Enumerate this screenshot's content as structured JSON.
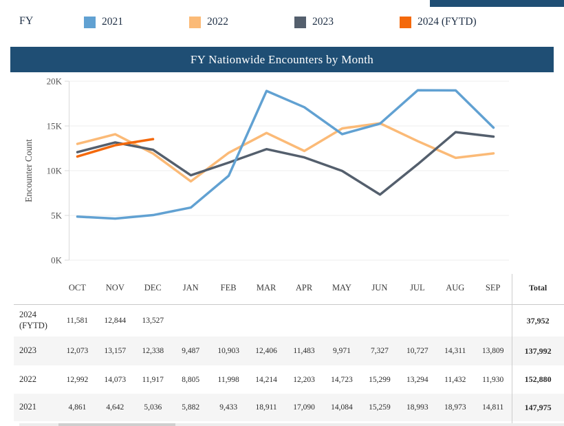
{
  "legend": {
    "title": "FY",
    "items": [
      {
        "label": "2021",
        "color": "#61A1D2"
      },
      {
        "label": "2022",
        "color": "#FBBA77"
      },
      {
        "label": "2023",
        "color": "#545F6D"
      },
      {
        "label": "2024 (FYTD)",
        "color": "#F4690C"
      }
    ]
  },
  "banner": {
    "title": "FY Nationwide Encounters by Month"
  },
  "chart_data": {
    "type": "line",
    "title": "FY Nationwide Encounters by Month",
    "xlabel": "",
    "ylabel": "Encounter Count",
    "ylim": [
      0,
      20000
    ],
    "ytick_values": [
      0,
      5000,
      10000,
      15000,
      20000
    ],
    "ytick_labels": [
      "0K",
      "5K",
      "10K",
      "15K",
      "20K"
    ],
    "grid": true,
    "legend_position": "top",
    "categories": [
      "OCT",
      "NOV",
      "DEC",
      "JAN",
      "FEB",
      "MAR",
      "APR",
      "MAY",
      "JUN",
      "JUL",
      "AUG",
      "SEP"
    ],
    "series": [
      {
        "name": "2021",
        "color": "#61A1D2",
        "values": [
          4861,
          4642,
          5036,
          5882,
          9433,
          18911,
          17090,
          14084,
          15259,
          18993,
          18973,
          14811
        ]
      },
      {
        "name": "2022",
        "color": "#FBBA77",
        "values": [
          12992,
          14073,
          11917,
          8805,
          11998,
          14214,
          12203,
          14723,
          15299,
          13294,
          11432,
          11930
        ]
      },
      {
        "name": "2023",
        "color": "#545F6D",
        "values": [
          12073,
          13157,
          12338,
          9487,
          10903,
          12406,
          11483,
          9971,
          7327,
          10727,
          14311,
          13809
        ]
      },
      {
        "name": "2024 (FYTD)",
        "color": "#F4690C",
        "values": [
          11581,
          12844,
          13527
        ]
      }
    ],
    "draw_order": [
      1,
      2,
      0,
      3
    ]
  },
  "table": {
    "columns": [
      "OCT",
      "NOV",
      "DEC",
      "JAN",
      "FEB",
      "MAR",
      "APR",
      "MAY",
      "JUN",
      "JUL",
      "AUG",
      "SEP"
    ],
    "total_label": "Total",
    "rows": [
      {
        "label": "2024\n(FYTD)",
        "striped": false,
        "height": 46,
        "values": [
          "11,581",
          "12,844",
          "13,527",
          "",
          "",
          "",
          "",
          "",
          "",
          "",
          "",
          ""
        ],
        "total": "37,952"
      },
      {
        "label": "2023",
        "striped": true,
        "height": 42,
        "values": [
          "12,073",
          "13,157",
          "12,338",
          "9,487",
          "10,903",
          "12,406",
          "11,483",
          "9,971",
          "7,327",
          "10,727",
          "14,311",
          "13,809"
        ],
        "total": "137,992"
      },
      {
        "label": "2022",
        "striped": false,
        "height": 41,
        "values": [
          "12,992",
          "14,073",
          "11,917",
          "8,805",
          "11,998",
          "14,214",
          "12,203",
          "14,723",
          "15,299",
          "13,294",
          "11,432",
          "11,930"
        ],
        "total": "152,880"
      },
      {
        "label": "2021",
        "striped": true,
        "height": 40,
        "values": [
          "4,861",
          "4,642",
          "5,036",
          "5,882",
          "9,433",
          "18,911",
          "17,090",
          "14,084",
          "15,259",
          "18,993",
          "18,973",
          "14,811"
        ],
        "total": "147,975"
      }
    ]
  },
  "colors": {
    "banner_bg": "#1F4E74",
    "gridline": "#ececec",
    "axis": "#d9d9d9",
    "tick_text": "#565656"
  }
}
